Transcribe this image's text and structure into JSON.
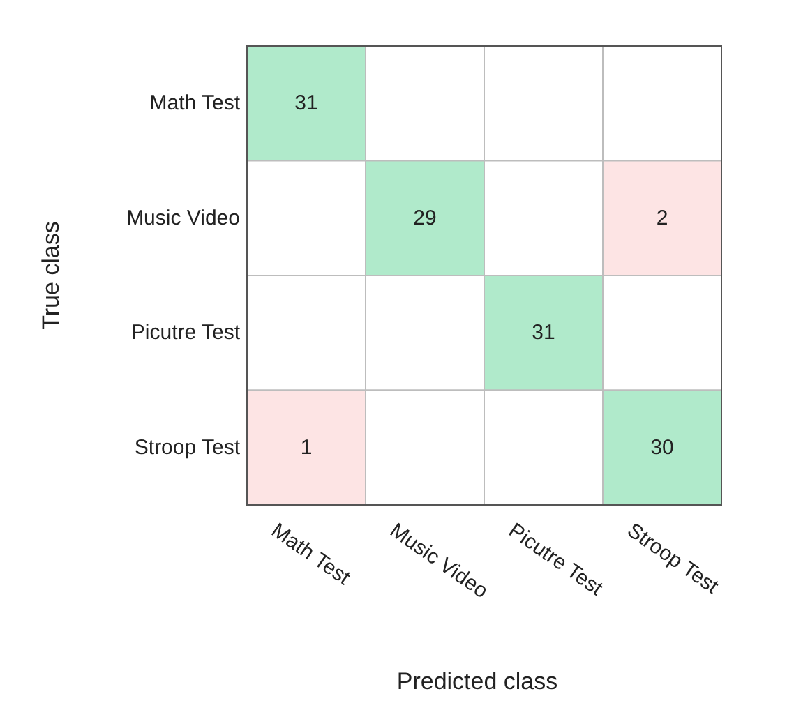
{
  "chart_data": {
    "type": "heatmap",
    "xlabel": "Predicted class",
    "ylabel": "True class",
    "categories": [
      "Math Test",
      "Music Video",
      "Picutre Test",
      "Stroop Test"
    ],
    "y_categories": [
      "Math Test",
      "Music Video",
      "Picutre Test",
      "Stroop Test"
    ],
    "data_labels": true,
    "cells": [
      [
        31,
        null,
        null,
        null
      ],
      [
        null,
        29,
        null,
        2
      ],
      [
        null,
        null,
        31,
        null
      ],
      [
        1,
        null,
        null,
        30
      ]
    ],
    "colors": [
      [
        "#b0eacb",
        null,
        null,
        null
      ],
      [
        null,
        "#b0eacb",
        null,
        "#fde4e4"
      ],
      [
        null,
        null,
        "#b0eacb",
        null
      ],
      [
        "#fde4e4",
        null,
        null,
        "#b0eacb"
      ]
    ]
  }
}
